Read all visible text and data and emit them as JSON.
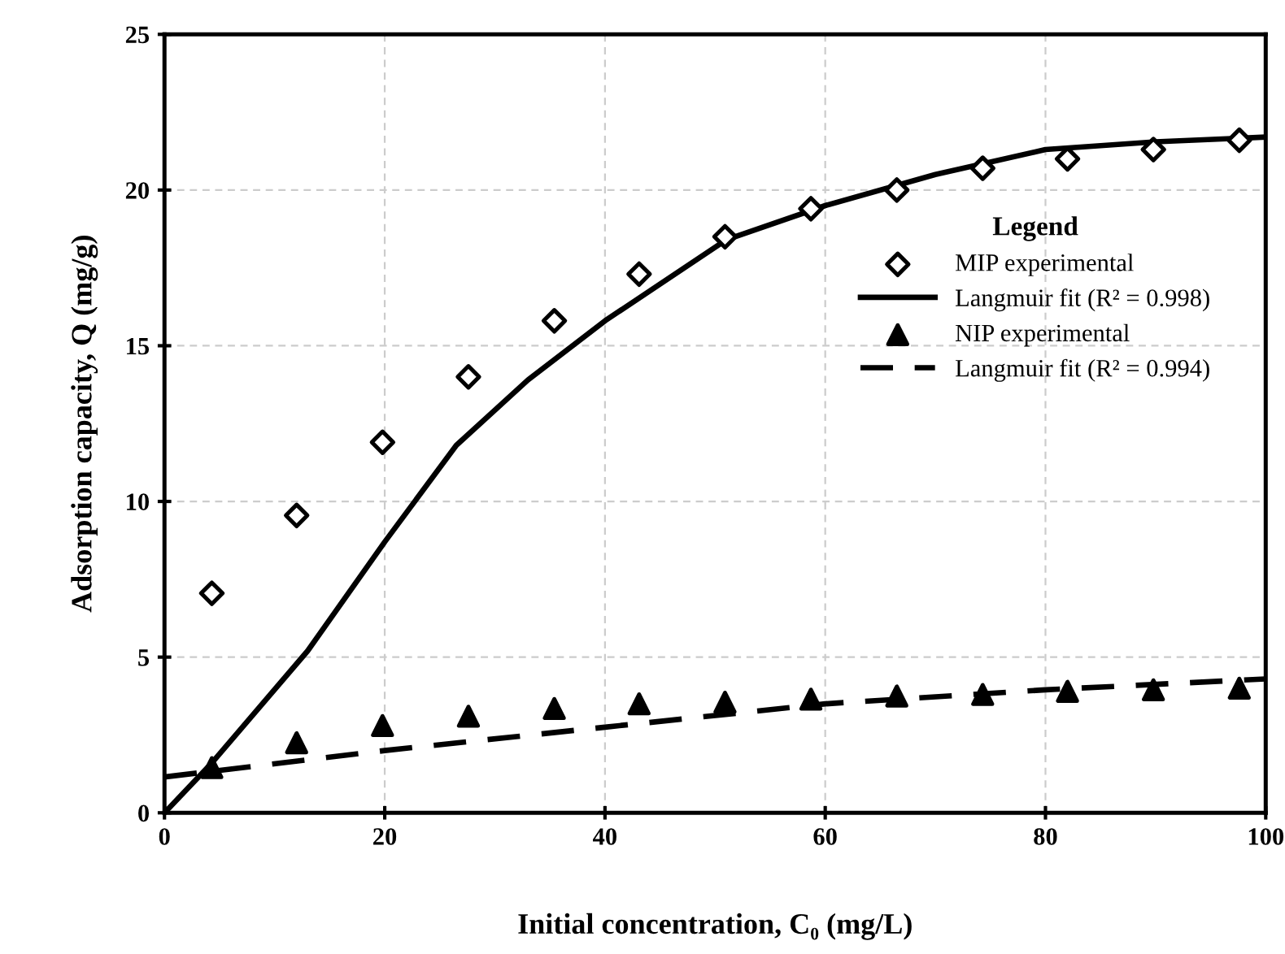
{
  "chart_data": {
    "type": "scatter",
    "xlabel": "Initial concentration, C₀ (mg/L)",
    "ylabel": "Adsorption capacity, Q (mg/g)",
    "legend_title": "Legend",
    "xlim": [
      0,
      100
    ],
    "ylim": [
      0,
      25
    ],
    "xticks": [
      0,
      20,
      40,
      60,
      80,
      100
    ],
    "yticks": [
      0,
      5,
      10,
      15,
      20,
      25
    ],
    "grid": true,
    "legend": "right",
    "series": [
      {
        "name": "MIP experimental",
        "marker": "diamond",
        "color": "#000000",
        "x": [
          4.3,
          12,
          19.8,
          27.6,
          35.4,
          43.1,
          50.9,
          58.7,
          66.5,
          74.3,
          82,
          89.8,
          97.6
        ],
        "values": [
          7.05,
          9.55,
          11.9,
          14.0,
          15.8,
          17.3,
          18.5,
          19.4,
          20.0,
          20.7,
          21.0,
          21.3,
          21.6
        ]
      },
      {
        "name": "Langmuir fit (R² = 0.998)",
        "type": "line",
        "line_style": "solid",
        "color": "#000000",
        "x": [
          0,
          4.3,
          13,
          20,
          26.5,
          33,
          40,
          51,
          60,
          70,
          80,
          90,
          100
        ],
        "values": [
          0,
          1.6,
          5.2,
          8.7,
          11.8,
          13.9,
          15.8,
          18.4,
          19.5,
          20.5,
          21.3,
          21.55,
          21.7
        ]
      },
      {
        "name": "NIP experimental",
        "marker": "triangle",
        "color": "#000000",
        "x": [
          4.3,
          12,
          19.8,
          27.6,
          35.4,
          43.1,
          50.9,
          58.7,
          66.5,
          74.3,
          82,
          89.8,
          97.6
        ],
        "values": [
          1.45,
          2.25,
          2.8,
          3.1,
          3.35,
          3.5,
          3.55,
          3.65,
          3.75,
          3.8,
          3.9,
          3.95,
          4.0
        ]
      },
      {
        "name": "Langmuir fit (R² = 0.994)",
        "type": "line",
        "line_style": "dashed",
        "color": "#000000",
        "x": [
          0,
          20,
          40,
          60,
          80,
          100
        ],
        "values": [
          1.15,
          2.0,
          2.75,
          3.5,
          3.95,
          4.3
        ]
      }
    ]
  }
}
